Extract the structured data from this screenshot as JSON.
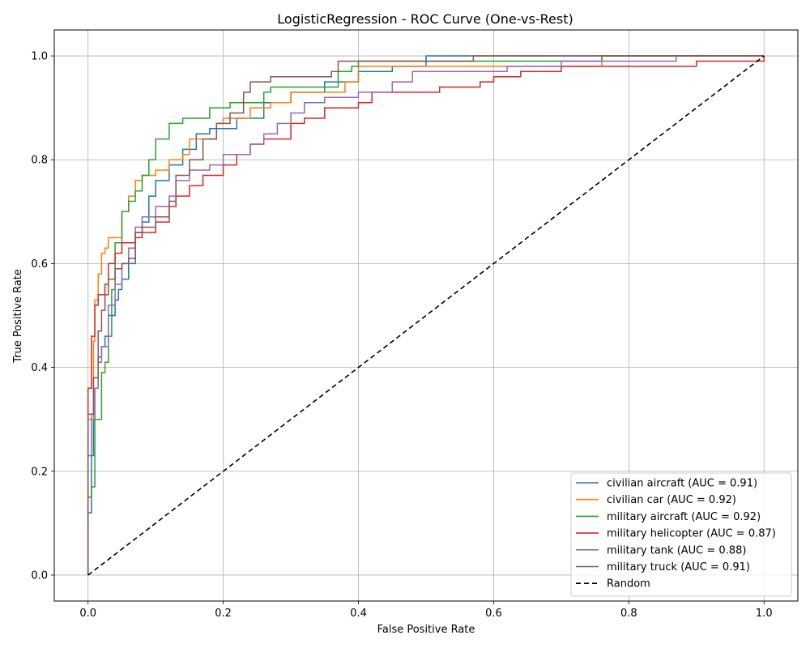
{
  "chart_data": {
    "type": "line",
    "title": "LogisticRegression - ROC Curve (One-vs-Rest)",
    "xlabel": "False Positive Rate",
    "ylabel": "True Positive Rate",
    "xlim": [
      -0.05,
      1.05
    ],
    "ylim": [
      -0.05,
      1.05
    ],
    "xticks": [
      "0.0",
      "0.2",
      "0.4",
      "0.6",
      "0.8",
      "1.0"
    ],
    "yticks": [
      "0.0",
      "0.2",
      "0.4",
      "0.6",
      "0.8",
      "1.0"
    ],
    "grid": true,
    "legend_position": "lower-right",
    "series": [
      {
        "name": "civilian aircraft (AUC = 0.91)",
        "color": "#1f77b4",
        "points": [
          [
            0,
            0
          ],
          [
            0,
            0.1
          ],
          [
            0.005,
            0.12
          ],
          [
            0.008,
            0.23
          ],
          [
            0.01,
            0.3
          ],
          [
            0.015,
            0.36
          ],
          [
            0.02,
            0.42
          ],
          [
            0.025,
            0.44
          ],
          [
            0.03,
            0.46
          ],
          [
            0.04,
            0.5
          ],
          [
            0.045,
            0.53
          ],
          [
            0.05,
            0.55
          ],
          [
            0.06,
            0.57
          ],
          [
            0.07,
            0.6
          ],
          [
            0.08,
            0.66
          ],
          [
            0.09,
            0.68
          ],
          [
            0.1,
            0.73
          ],
          [
            0.12,
            0.76
          ],
          [
            0.14,
            0.79
          ],
          [
            0.16,
            0.82
          ],
          [
            0.18,
            0.85
          ],
          [
            0.22,
            0.86
          ],
          [
            0.26,
            0.88
          ],
          [
            0.3,
            0.91
          ],
          [
            0.35,
            0.93
          ],
          [
            0.4,
            0.95
          ],
          [
            0.45,
            0.97
          ],
          [
            0.5,
            0.98
          ],
          [
            0.55,
            1.0
          ],
          [
            1.0,
            1.0
          ]
        ]
      },
      {
        "name": "civilian car (AUC = 0.92)",
        "color": "#ff7f0e",
        "points": [
          [
            0,
            0
          ],
          [
            0,
            0.23
          ],
          [
            0.008,
            0.3
          ],
          [
            0.01,
            0.45
          ],
          [
            0.015,
            0.53
          ],
          [
            0.02,
            0.58
          ],
          [
            0.025,
            0.62
          ],
          [
            0.03,
            0.63
          ],
          [
            0.05,
            0.65
          ],
          [
            0.06,
            0.7
          ],
          [
            0.07,
            0.73
          ],
          [
            0.08,
            0.76
          ],
          [
            0.1,
            0.77
          ],
          [
            0.12,
            0.78
          ],
          [
            0.14,
            0.8
          ],
          [
            0.15,
            0.81
          ],
          [
            0.19,
            0.84
          ],
          [
            0.2,
            0.87
          ],
          [
            0.24,
            0.88
          ],
          [
            0.27,
            0.9
          ],
          [
            0.3,
            0.91
          ],
          [
            0.38,
            0.93
          ],
          [
            0.4,
            0.95
          ],
          [
            0.43,
            0.98
          ],
          [
            0.55,
            0.98
          ],
          [
            0.76,
            0.98
          ],
          [
            1.0,
            1.0
          ]
        ]
      },
      {
        "name": "military aircraft (AUC = 0.92)",
        "color": "#2ca02c",
        "points": [
          [
            0,
            0
          ],
          [
            0,
            0.06
          ],
          [
            0.005,
            0.15
          ],
          [
            0.01,
            0.17
          ],
          [
            0.02,
            0.3
          ],
          [
            0.025,
            0.39
          ],
          [
            0.03,
            0.41
          ],
          [
            0.035,
            0.46
          ],
          [
            0.04,
            0.55
          ],
          [
            0.05,
            0.64
          ],
          [
            0.06,
            0.7
          ],
          [
            0.07,
            0.72
          ],
          [
            0.08,
            0.74
          ],
          [
            0.09,
            0.77
          ],
          [
            0.1,
            0.8
          ],
          [
            0.12,
            0.84
          ],
          [
            0.14,
            0.87
          ],
          [
            0.18,
            0.88
          ],
          [
            0.21,
            0.9
          ],
          [
            0.26,
            0.91
          ],
          [
            0.27,
            0.93
          ],
          [
            0.37,
            0.94
          ],
          [
            0.39,
            0.97
          ],
          [
            0.4,
            0.98
          ],
          [
            0.76,
            0.99
          ],
          [
            0.77,
            1.0
          ],
          [
            1.0,
            1.0
          ]
        ]
      },
      {
        "name": "military helicopter (AUC = 0.87)",
        "color": "#d62728",
        "points": [
          [
            0,
            0
          ],
          [
            0,
            0.27
          ],
          [
            0.005,
            0.36
          ],
          [
            0.01,
            0.46
          ],
          [
            0.015,
            0.52
          ],
          [
            0.025,
            0.54
          ],
          [
            0.03,
            0.56
          ],
          [
            0.04,
            0.6
          ],
          [
            0.05,
            0.62
          ],
          [
            0.07,
            0.64
          ],
          [
            0.08,
            0.65
          ],
          [
            0.1,
            0.66
          ],
          [
            0.12,
            0.68
          ],
          [
            0.13,
            0.71
          ],
          [
            0.15,
            0.73
          ],
          [
            0.17,
            0.75
          ],
          [
            0.2,
            0.77
          ],
          [
            0.22,
            0.79
          ],
          [
            0.24,
            0.81
          ],
          [
            0.26,
            0.83
          ],
          [
            0.3,
            0.84
          ],
          [
            0.32,
            0.87
          ],
          [
            0.35,
            0.88
          ],
          [
            0.4,
            0.9
          ],
          [
            0.42,
            0.91
          ],
          [
            0.52,
            0.93
          ],
          [
            0.58,
            0.94
          ],
          [
            0.6,
            0.95
          ],
          [
            0.64,
            0.96
          ],
          [
            0.7,
            0.97
          ],
          [
            0.9,
            0.98
          ],
          [
            0.95,
            0.99
          ],
          [
            1.0,
            0.99
          ],
          [
            1.0,
            1.0
          ]
        ]
      },
      {
        "name": "military tank (AUC = 0.88)",
        "color": "#9467bd",
        "points": [
          [
            0,
            0
          ],
          [
            0,
            0.1
          ],
          [
            0.005,
            0.23
          ],
          [
            0.01,
            0.31
          ],
          [
            0.015,
            0.36
          ],
          [
            0.02,
            0.41
          ],
          [
            0.03,
            0.44
          ],
          [
            0.04,
            0.52
          ],
          [
            0.05,
            0.56
          ],
          [
            0.06,
            0.6
          ],
          [
            0.07,
            0.63
          ],
          [
            0.08,
            0.67
          ],
          [
            0.1,
            0.69
          ],
          [
            0.12,
            0.71
          ],
          [
            0.13,
            0.73
          ],
          [
            0.15,
            0.76
          ],
          [
            0.18,
            0.78
          ],
          [
            0.2,
            0.79
          ],
          [
            0.24,
            0.81
          ],
          [
            0.26,
            0.83
          ],
          [
            0.28,
            0.85
          ],
          [
            0.3,
            0.87
          ],
          [
            0.32,
            0.89
          ],
          [
            0.35,
            0.91
          ],
          [
            0.4,
            0.92
          ],
          [
            0.45,
            0.93
          ],
          [
            0.48,
            0.95
          ],
          [
            0.62,
            0.97
          ],
          [
            0.7,
            0.98
          ],
          [
            0.75,
            0.99
          ],
          [
            0.87,
            0.99
          ],
          [
            0.87,
            1.0
          ],
          [
            1.0,
            1.0
          ]
        ]
      },
      {
        "name": "military truck (AUC = 0.91)",
        "color": "#8c564b",
        "points": [
          [
            0,
            0
          ],
          [
            0,
            0.3
          ],
          [
            0.008,
            0.31
          ],
          [
            0.015,
            0.38
          ],
          [
            0.02,
            0.47
          ],
          [
            0.025,
            0.51
          ],
          [
            0.03,
            0.54
          ],
          [
            0.04,
            0.57
          ],
          [
            0.05,
            0.59
          ],
          [
            0.06,
            0.6
          ],
          [
            0.07,
            0.61
          ],
          [
            0.08,
            0.66
          ],
          [
            0.1,
            0.67
          ],
          [
            0.12,
            0.69
          ],
          [
            0.13,
            0.72
          ],
          [
            0.15,
            0.77
          ],
          [
            0.17,
            0.8
          ],
          [
            0.19,
            0.84
          ],
          [
            0.21,
            0.87
          ],
          [
            0.23,
            0.89
          ],
          [
            0.24,
            0.93
          ],
          [
            0.27,
            0.95
          ],
          [
            0.36,
            0.96
          ],
          [
            0.37,
            0.97
          ],
          [
            0.4,
            0.99
          ],
          [
            0.57,
            0.99
          ],
          [
            0.58,
            1.0
          ],
          [
            1.0,
            1.0
          ]
        ]
      },
      {
        "name": "Random",
        "color": "#000000",
        "dashed": true,
        "points": [
          [
            0,
            0
          ],
          [
            1,
            1
          ]
        ]
      }
    ]
  }
}
